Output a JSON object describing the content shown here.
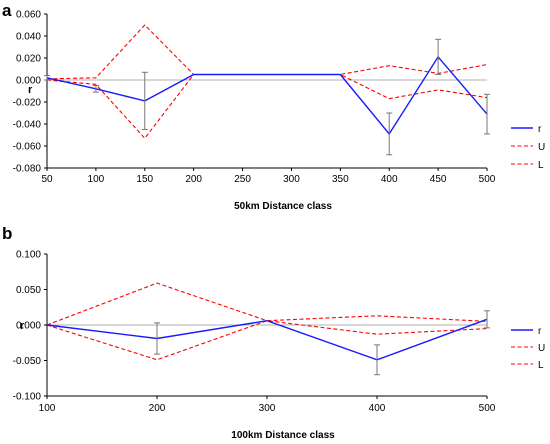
{
  "colors": {
    "r": "#1a1aff",
    "U": "#ff0000",
    "L": "#ff0000",
    "zero": "#b0b0b0",
    "errorbar": "#777777",
    "axis": "#000000"
  },
  "chart_data": [
    {
      "type": "line",
      "panel_label": "a",
      "xlabel": "50km Distance class",
      "ylabel": "r",
      "x": [
        50,
        100,
        150,
        200,
        250,
        300,
        350,
        400,
        450,
        500
      ],
      "xticks": [
        "50",
        "100",
        "150",
        "200",
        "250",
        "300",
        "350",
        "400",
        "450",
        "500"
      ],
      "ylim": [
        -0.08,
        0.06
      ],
      "yticks": [
        0.06,
        0.04,
        0.02,
        0.0,
        -0.02,
        -0.04,
        -0.06,
        -0.08
      ],
      "ytick_labels": [
        "0.060",
        "0.040",
        "0.020",
        "0.000",
        "-0.020",
        "-0.040",
        "-0.060",
        "-0.080"
      ],
      "series": [
        {
          "name": "r",
          "style": "solid",
          "values": [
            0.002,
            -0.008,
            -0.019,
            0.005,
            0.005,
            0.005,
            0.005,
            -0.049,
            0.021,
            -0.031
          ],
          "errors": [
            0.002,
            0.003,
            0.026,
            0,
            0,
            0,
            0,
            0.019,
            0.016,
            0.018
          ]
        },
        {
          "name": "U",
          "style": "dashed",
          "values": [
            0.001,
            0.002,
            0.05,
            0.005,
            0.005,
            0.005,
            0.005,
            0.013,
            0.006,
            0.014
          ]
        },
        {
          "name": "L",
          "style": "dashed",
          "values": [
            0.0,
            -0.004,
            -0.053,
            0.005,
            0.005,
            0.005,
            0.005,
            -0.017,
            -0.009,
            -0.016
          ]
        }
      ],
      "legend": [
        "r",
        "U",
        "L"
      ]
    },
    {
      "type": "line",
      "panel_label": "b",
      "xlabel": "100km Distance class",
      "ylabel": "r",
      "x": [
        100,
        200,
        300,
        400,
        500
      ],
      "xticks": [
        "100",
        "200",
        "300",
        "400",
        "500"
      ],
      "ylim": [
        -0.1,
        0.1
      ],
      "yticks": [
        0.1,
        0.05,
        0.0,
        -0.05,
        -0.1
      ],
      "ytick_labels": [
        "0.100",
        "0.050",
        "0.000",
        "-0.050",
        "-0.100"
      ],
      "series": [
        {
          "name": "r",
          "style": "solid",
          "values": [
            0.0,
            -0.019,
            0.006,
            -0.049,
            0.008
          ],
          "errors": [
            0,
            0.022,
            0,
            0.021,
            0.012
          ]
        },
        {
          "name": "U",
          "style": "dashed",
          "values": [
            0.0,
            0.059,
            0.006,
            0.013,
            0.005
          ]
        },
        {
          "name": "L",
          "style": "dashed",
          "values": [
            0.0,
            -0.049,
            0.006,
            -0.013,
            -0.005
          ]
        }
      ],
      "legend": [
        "r",
        "U",
        "L"
      ]
    }
  ]
}
